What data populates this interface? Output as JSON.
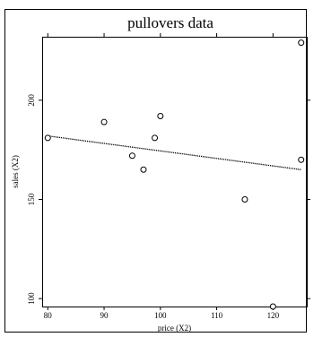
{
  "chart_data": {
    "type": "scatter",
    "title": "pullovers data",
    "xlabel": "price (X2)",
    "ylabel": "sales (X2)",
    "xlim": [
      79,
      126
    ],
    "ylim": [
      96,
      232
    ],
    "x_ticks": [
      {
        "value": 80,
        "label": "80"
      },
      {
        "value": 90,
        "label": "90"
      },
      {
        "value": 100,
        "label": "100"
      },
      {
        "value": 110,
        "label": "110"
      },
      {
        "value": 120,
        "label": "120"
      }
    ],
    "y_ticks": [
      {
        "value": 100,
        "label": "100"
      },
      {
        "value": 150,
        "label": "150"
      },
      {
        "value": 200,
        "label": "200"
      }
    ],
    "points": [
      {
        "x": 80,
        "y": 181
      },
      {
        "x": 90,
        "y": 189
      },
      {
        "x": 95,
        "y": 172
      },
      {
        "x": 97,
        "y": 165
      },
      {
        "x": 99,
        "y": 181
      },
      {
        "x": 100,
        "y": 192
      },
      {
        "x": 115,
        "y": 150
      },
      {
        "x": 120,
        "y": 96
      },
      {
        "x": 125,
        "y": 229
      },
      {
        "x": 125,
        "y": 170
      }
    ],
    "regression_line": {
      "style": "dotted",
      "points": [
        {
          "x": 80,
          "y": 182
        },
        {
          "x": 125,
          "y": 165
        }
      ]
    },
    "grid": false,
    "legend": "none"
  }
}
